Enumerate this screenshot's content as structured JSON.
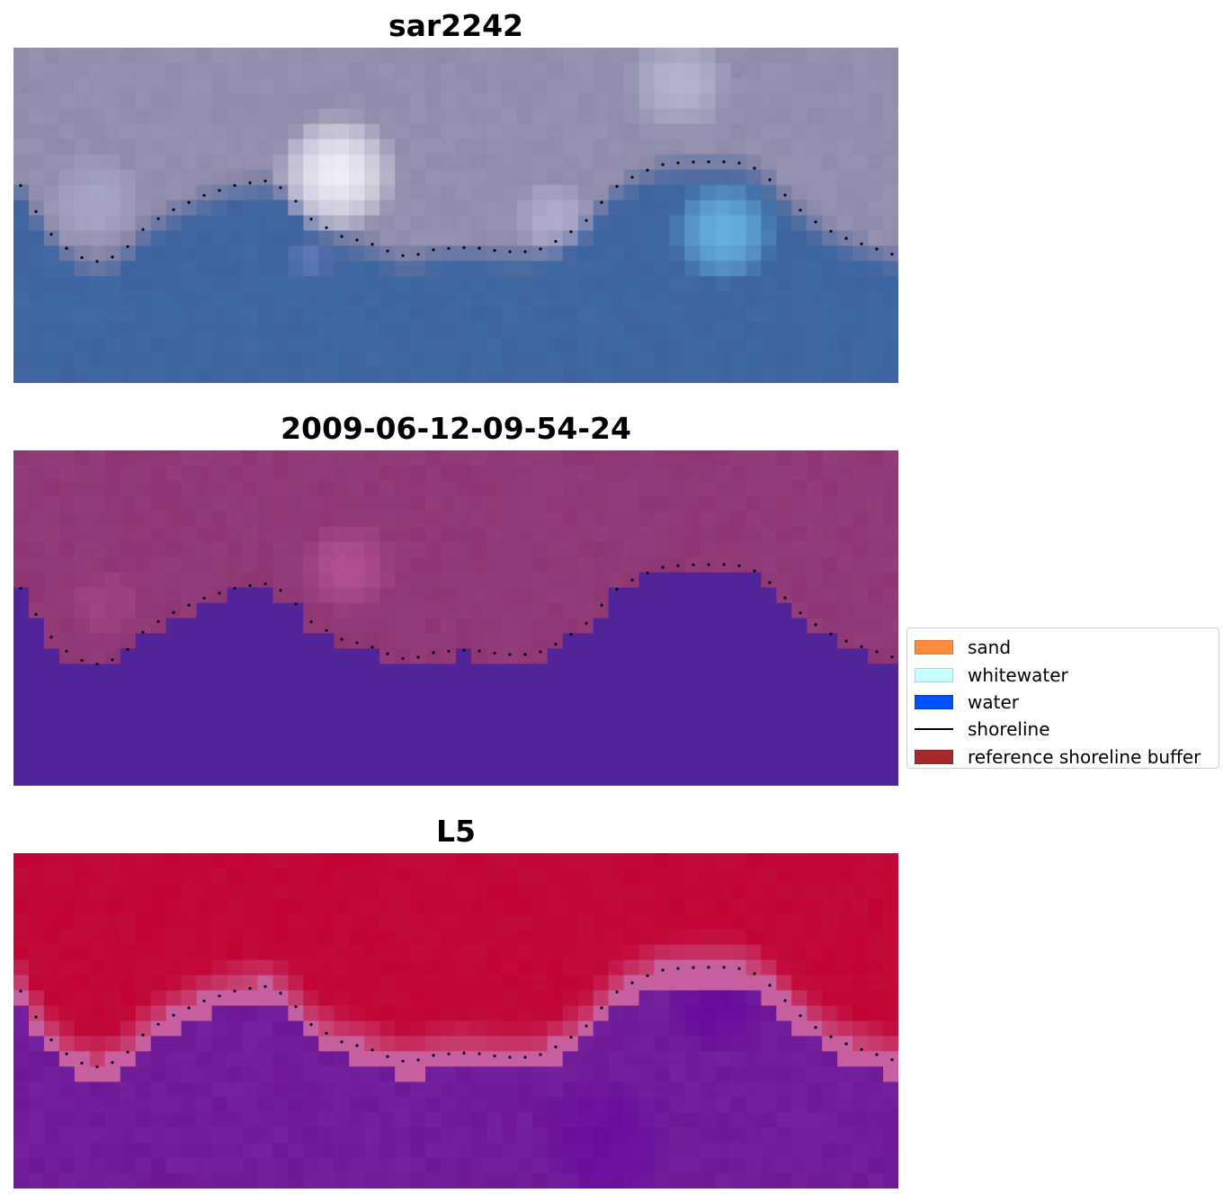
{
  "panels": [
    {
      "title": "sar2242"
    },
    {
      "title": "2009-06-12-09-54-24"
    },
    {
      "title": "L5"
    }
  ],
  "legend": {
    "items": [
      {
        "label": "sand",
        "color": "#ff8c3a",
        "kind": "patch"
      },
      {
        "label": "whitewater",
        "color": "#c8ffff",
        "kind": "patch"
      },
      {
        "label": "water",
        "color": "#0050ff",
        "kind": "patch"
      },
      {
        "label": "shoreline",
        "color": "#000000",
        "kind": "line"
      },
      {
        "label": "reference shoreline buffer",
        "color": "#a52a2a",
        "kind": "patch"
      }
    ]
  },
  "colors": {
    "rgb_land": "#8e8aa8",
    "rgb_water": "#3d64a0",
    "rgb_bright": "#f4f2fa",
    "rgb_cyan": "#6cbcec",
    "class_land": "#8e3472",
    "class_water": "#52249a",
    "index_land": "#c20434",
    "index_water": "#6e1896",
    "shoreline": "#000000"
  }
}
